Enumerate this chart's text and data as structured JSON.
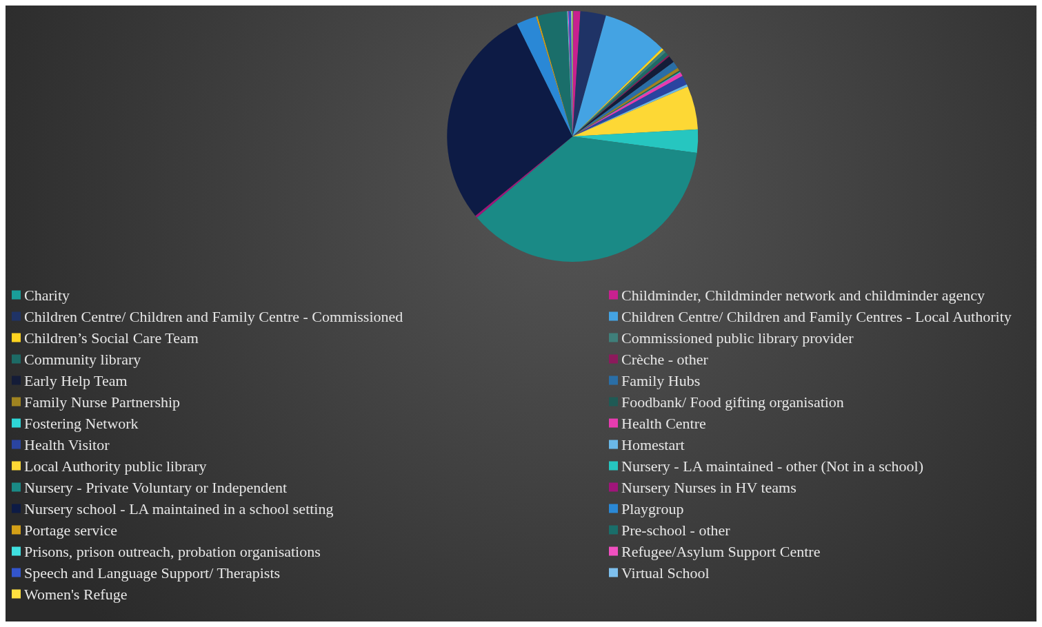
{
  "chart_data": {
    "type": "pie",
    "legend": "bottom",
    "categories": [
      "Charity",
      "Childminder, Childminder network and childminder agency",
      "Children Centre/ Children and Family Centre - Commissioned",
      "Children Centre/ Children and Family Centres - Local Authority",
      "Children’s Social Care Team",
      "Commissioned public library provider",
      "Community library",
      "Crèche - other",
      "Early Help Team",
      "Family Hubs",
      "Family Nurse Partnership",
      "Foodbank/ Food gifting organisation",
      "Fostering Network",
      "Health Centre",
      "Health Visitor",
      "Homestart",
      "Local Authority public library",
      "Nursery - LA maintained - other (Not in a school)",
      "Nursery - Private Voluntary or Independent",
      "Nursery Nurses in HV teams",
      "Nursery school - LA maintained in a school setting",
      "Playgroup",
      "Portage service",
      "Pre-school - other",
      "Prisons, prison outreach, probation organisations",
      "Refugee/Asylum Support Centre",
      "Speech and Language Support/ Therapists",
      "Virtual School",
      "Women's Refuge"
    ],
    "values": [
      0.1,
      0.9,
      3.3,
      8.3,
      0.3,
      0.4,
      0.5,
      0.2,
      0.9,
      0.9,
      0.4,
      0.2,
      0.1,
      0.5,
      1.2,
      0.3,
      5.6,
      3.0,
      36.7,
      0.3,
      28.6,
      2.6,
      0.2,
      3.8,
      0.1,
      0.1,
      0.3,
      0.1,
      0.1
    ],
    "colors": [
      "#1a9e9a",
      "#c8208f",
      "#1f3366",
      "#44a3e3",
      "#ffd320",
      "#3f7f7a",
      "#1d6b66",
      "#8c1a5c",
      "#141c38",
      "#2a6ea6",
      "#a08420",
      "#1f5a55",
      "#2ed6d6",
      "#e83cb0",
      "#2a44a0",
      "#6ab8e8",
      "#fdd835",
      "#26c6c0",
      "#1a8a86",
      "#a0157a",
      "#0d1b45",
      "#2a88d6",
      "#d4a017",
      "#1a6e6a",
      "#40e0e0",
      "#f050c0",
      "#3355cc",
      "#7ec0ee",
      "#ffe040"
    ]
  }
}
